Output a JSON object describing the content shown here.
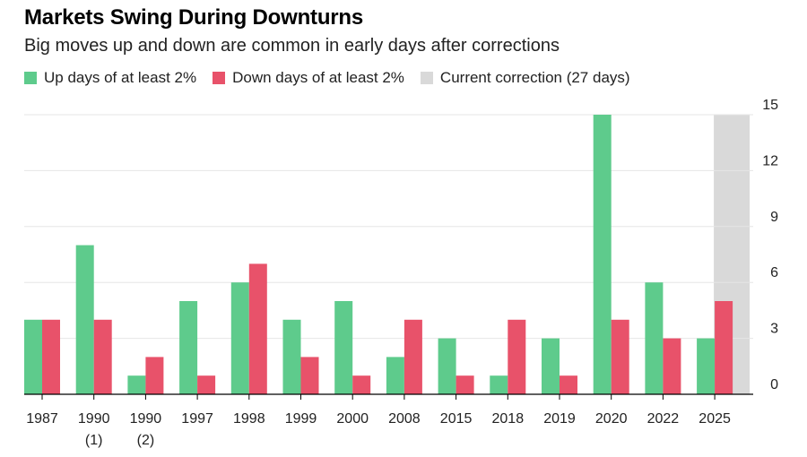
{
  "chart_data": {
    "type": "bar",
    "title": "Markets Swing During Downturns",
    "subtitle": "Big moves up and down are common in early days after corrections",
    "categories": [
      {
        "line1": "1987",
        "line2": ""
      },
      {
        "line1": "1990",
        "line2": "(1)"
      },
      {
        "line1": "1990",
        "line2": "(2)"
      },
      {
        "line1": "1997",
        "line2": ""
      },
      {
        "line1": "1998",
        "line2": ""
      },
      {
        "line1": "1999",
        "line2": ""
      },
      {
        "line1": "2000",
        "line2": ""
      },
      {
        "line1": "2008",
        "line2": ""
      },
      {
        "line1": "2015",
        "line2": ""
      },
      {
        "line1": "2018",
        "line2": ""
      },
      {
        "line1": "2019",
        "line2": ""
      },
      {
        "line1": "2020",
        "line2": ""
      },
      {
        "line1": "2022",
        "line2": ""
      },
      {
        "line1": "2025",
        "line2": ""
      }
    ],
    "series": [
      {
        "name": "Up days of at least 2%",
        "color": "#5ecb8c",
        "values": [
          4,
          8,
          1,
          5,
          6,
          4,
          5,
          2,
          3,
          1,
          3,
          15,
          6,
          3
        ]
      },
      {
        "name": "Down days of at least 2%",
        "color": "#e8526a",
        "values": [
          4,
          4,
          2,
          1,
          7,
          2,
          1,
          4,
          1,
          4,
          1,
          4,
          3,
          5
        ]
      }
    ],
    "highlight": {
      "label": "Current correction (27 days)",
      "category_index": 13,
      "color": "#d9d9d9"
    },
    "yticks": [
      0,
      3,
      6,
      9,
      12,
      15
    ],
    "ylim": [
      0,
      15
    ],
    "axis_position": "right",
    "grid": true
  }
}
